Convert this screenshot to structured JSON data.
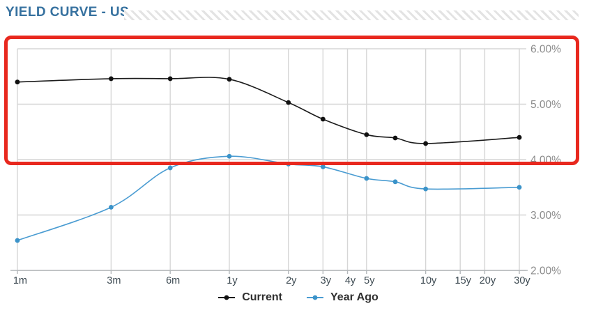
{
  "header": {
    "title": "YIELD CURVE - US"
  },
  "chart_data": {
    "type": "line",
    "title": "YIELD CURVE - US",
    "grid": true,
    "legend_position": "bottom",
    "x_axis": {
      "scale": "log",
      "label": "maturity",
      "ticks": [
        {
          "label": "1m",
          "years": 0.0833
        },
        {
          "label": "3m",
          "years": 0.25
        },
        {
          "label": "6m",
          "years": 0.5
        },
        {
          "label": "1y",
          "years": 1
        },
        {
          "label": "2y",
          "years": 2
        },
        {
          "label": "3y",
          "years": 3
        },
        {
          "label": "4y",
          "years": 4
        },
        {
          "label": "5y",
          "years": 5
        },
        {
          "label": "10y",
          "years": 10
        },
        {
          "label": "15y",
          "years": 15
        },
        {
          "label": "20y",
          "years": 20
        },
        {
          "label": "30y",
          "years": 30
        }
      ]
    },
    "y_axis": {
      "side": "right",
      "min": 2,
      "max": 6,
      "ticks": [
        {
          "value": 6,
          "label": "6.00%"
        },
        {
          "value": 5,
          "label": "5.00%"
        },
        {
          "value": 4,
          "label": "4.00%"
        },
        {
          "value": 3,
          "label": "3.00%"
        },
        {
          "value": 2,
          "label": "2.00%"
        }
      ]
    },
    "series": [
      {
        "name": "Current",
        "color": "#1b1b1b",
        "marker_color": "#111111",
        "points": [
          {
            "maturity": "1m",
            "years": 0.0833,
            "yield_pct": 5.4
          },
          {
            "maturity": "3m",
            "years": 0.25,
            "yield_pct": 5.46
          },
          {
            "maturity": "6m",
            "years": 0.5,
            "yield_pct": 5.46
          },
          {
            "maturity": "1y",
            "years": 1,
            "yield_pct": 5.45
          },
          {
            "maturity": "2y",
            "years": 2,
            "yield_pct": 5.03
          },
          {
            "maturity": "3y",
            "years": 3,
            "yield_pct": 4.73
          },
          {
            "maturity": "5y",
            "years": 5,
            "yield_pct": 4.45
          },
          {
            "maturity": "7y",
            "years": 7,
            "yield_pct": 4.39
          },
          {
            "maturity": "10y",
            "years": 10,
            "yield_pct": 4.29
          },
          {
            "maturity": "30y",
            "years": 30,
            "yield_pct": 4.4
          }
        ]
      },
      {
        "name": "Year Ago",
        "color": "#4a9cd2",
        "marker_color": "#3b93c9",
        "points": [
          {
            "maturity": "1m",
            "years": 0.0833,
            "yield_pct": 2.54
          },
          {
            "maturity": "3m",
            "years": 0.25,
            "yield_pct": 3.14
          },
          {
            "maturity": "6m",
            "years": 0.5,
            "yield_pct": 3.85
          },
          {
            "maturity": "1y",
            "years": 1,
            "yield_pct": 4.06
          },
          {
            "maturity": "2y",
            "years": 2,
            "yield_pct": 3.92
          },
          {
            "maturity": "3y",
            "years": 3,
            "yield_pct": 3.87
          },
          {
            "maturity": "5y",
            "years": 5,
            "yield_pct": 3.66
          },
          {
            "maturity": "7y",
            "years": 7,
            "yield_pct": 3.6
          },
          {
            "maturity": "10y",
            "years": 10,
            "yield_pct": 3.47
          },
          {
            "maturity": "30y",
            "years": 30,
            "yield_pct": 3.5
          }
        ]
      }
    ],
    "annotation": {
      "type": "highlight-rectangle",
      "color": "#e8281e",
      "covers": "upper band of the chart (approx 4% to 6%) including right-side axis labels"
    }
  },
  "colors": {
    "title": "#36719f",
    "grid": "#d6d6d6",
    "axis": "#b3b7ba",
    "x_tick_label": "#3d4a52",
    "y_tick_label": "#8c8c8c",
    "background": "#ffffff",
    "annotation_red": "#e8281e",
    "hatch_stripe": "#e3e3e3"
  }
}
